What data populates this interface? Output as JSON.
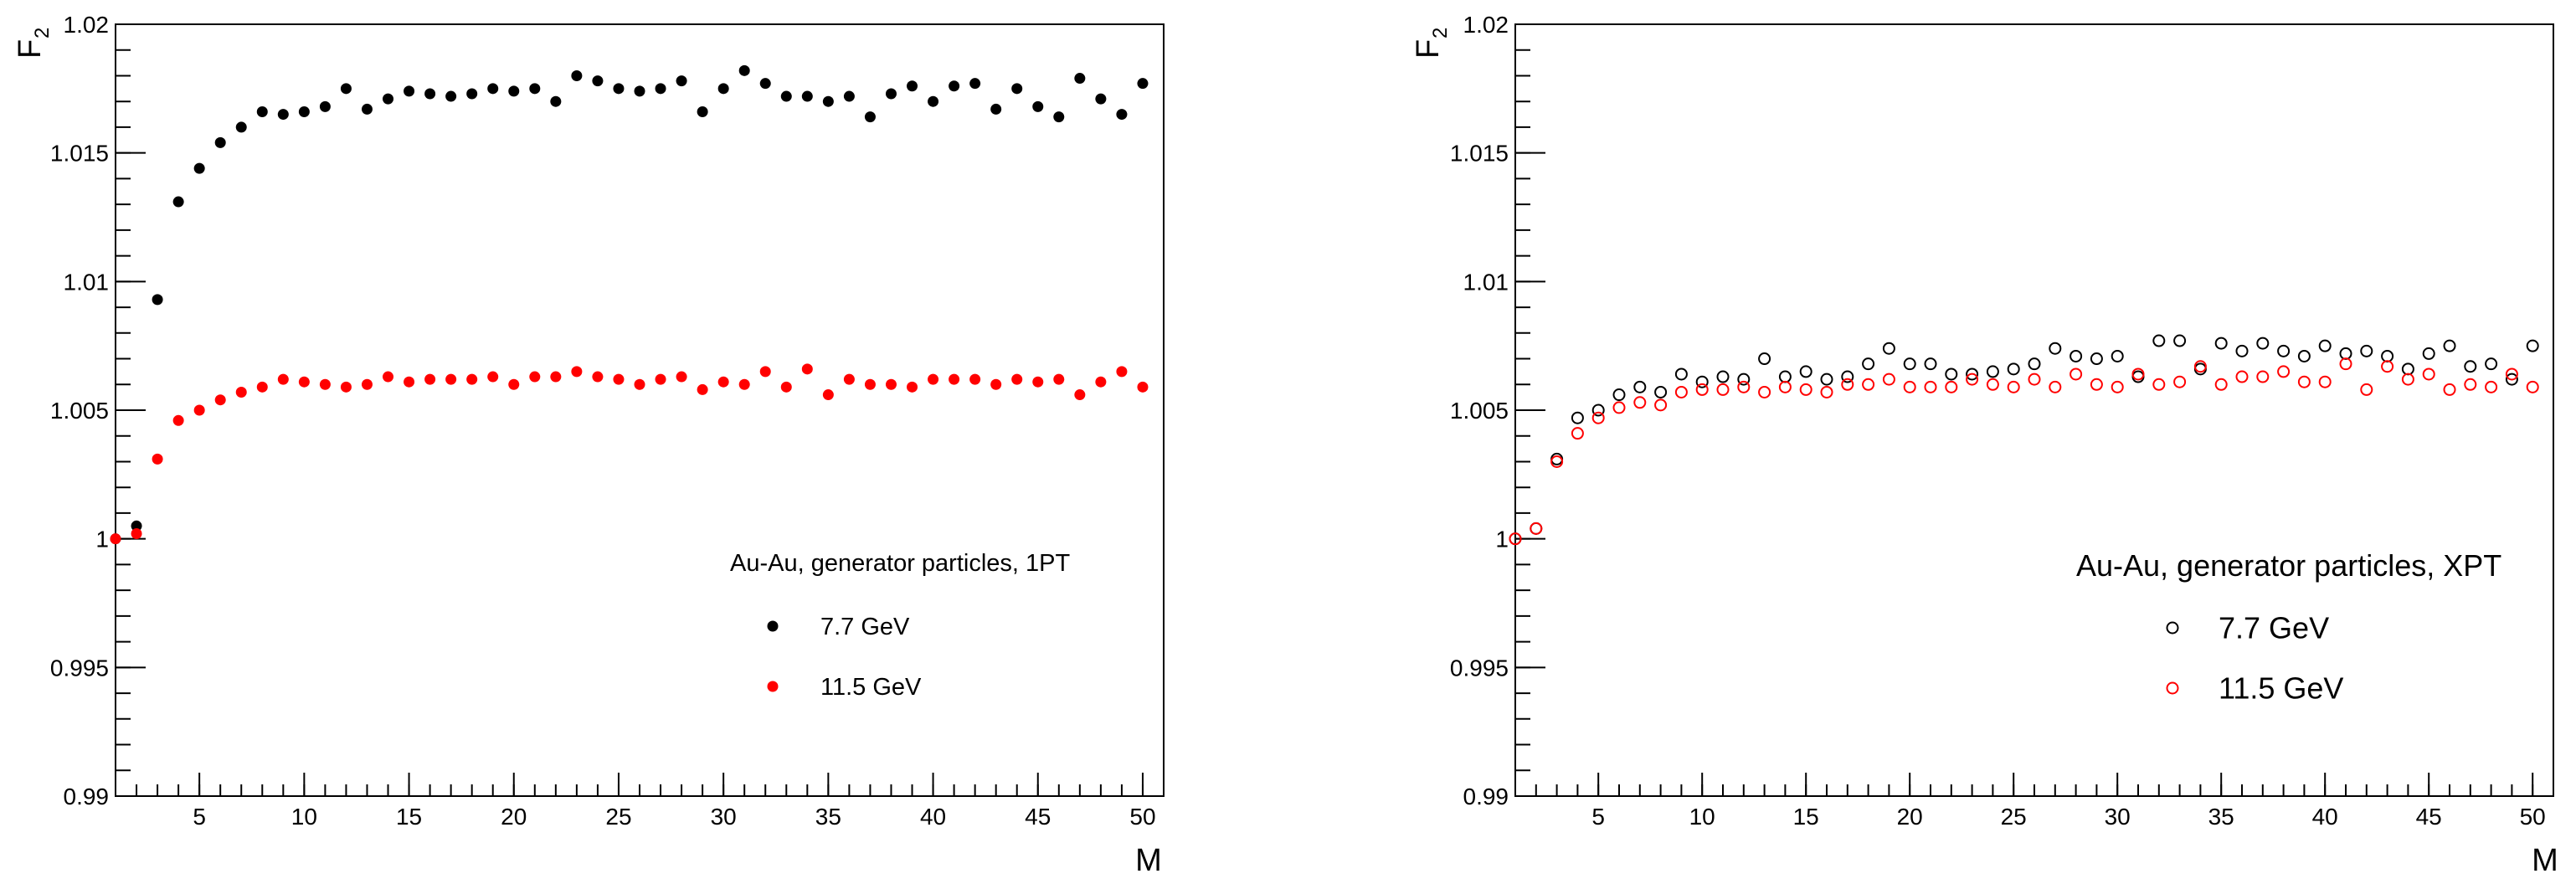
{
  "colors": {
    "series_a": "#000000",
    "series_b": "#ff0000",
    "frame": "#000000"
  },
  "chart_data": [
    {
      "type": "scatter",
      "marker": "filled-circle",
      "xlabel": "M",
      "ylabel": "F",
      "ylabel_sub": "2",
      "xlim": [
        1,
        51
      ],
      "ylim": [
        0.99,
        1.02
      ],
      "x_ticks": [
        5,
        10,
        15,
        20,
        25,
        30,
        35,
        40,
        45,
        50
      ],
      "x_tick_labels": [
        "5",
        "10",
        "15",
        "20",
        "25",
        "30",
        "35",
        "40",
        "45",
        "50"
      ],
      "y_ticks": [
        0.99,
        0.995,
        1.0,
        1.005,
        1.01,
        1.015,
        1.02
      ],
      "y_tick_labels": [
        "0.99",
        "0.995",
        "1",
        "1.005",
        "1.01",
        "1.015",
        "1.02"
      ],
      "legend_title": "Au-Au, generator particles, 1PT",
      "legend_position": "right-middle",
      "series": [
        {
          "name": "7.7 GeV",
          "x": [
            1,
            2,
            3,
            4,
            5,
            6,
            7,
            8,
            9,
            10,
            11,
            12,
            13,
            14,
            15,
            16,
            17,
            18,
            19,
            20,
            21,
            22,
            23,
            24,
            25,
            26,
            27,
            28,
            29,
            30,
            31,
            32,
            33,
            34,
            35,
            36,
            37,
            38,
            39,
            40,
            41,
            42,
            43,
            44,
            45,
            46,
            47,
            48,
            49,
            50
          ],
          "y": [
            1.0,
            1.0005,
            1.0093,
            1.0131,
            1.0144,
            1.0154,
            1.016,
            1.0166,
            1.0165,
            1.0166,
            1.0168,
            1.0175,
            1.0167,
            1.0171,
            1.0174,
            1.0173,
            1.0172,
            1.0173,
            1.0175,
            1.0174,
            1.0175,
            1.017,
            1.018,
            1.0178,
            1.0175,
            1.0174,
            1.0175,
            1.0178,
            1.0166,
            1.0175,
            1.0182,
            1.0177,
            1.0172,
            1.0172,
            1.017,
            1.0172,
            1.0164,
            1.0173,
            1.0176,
            1.017,
            1.0176,
            1.0177,
            1.0167,
            1.0175,
            1.0168,
            1.0164,
            1.0179,
            1.0171,
            1.0165,
            1.0177
          ]
        },
        {
          "name": "11.5 GeV",
          "x": [
            1,
            2,
            3,
            4,
            5,
            6,
            7,
            8,
            9,
            10,
            11,
            12,
            13,
            14,
            15,
            16,
            17,
            18,
            19,
            20,
            21,
            22,
            23,
            24,
            25,
            26,
            27,
            28,
            29,
            30,
            31,
            32,
            33,
            34,
            35,
            36,
            37,
            38,
            39,
            40,
            41,
            42,
            43,
            44,
            45,
            46,
            47,
            48,
            49,
            50
          ],
          "y": [
            1.0,
            1.0002,
            1.0031,
            1.0046,
            1.005,
            1.0054,
            1.0057,
            1.0059,
            1.0062,
            1.0061,
            1.006,
            1.0059,
            1.006,
            1.0063,
            1.0061,
            1.0062,
            1.0062,
            1.0062,
            1.0063,
            1.006,
            1.0063,
            1.0063,
            1.0065,
            1.0063,
            1.0062,
            1.006,
            1.0062,
            1.0063,
            1.0058,
            1.0061,
            1.006,
            1.0065,
            1.0059,
            1.0066,
            1.0056,
            1.0062,
            1.006,
            1.006,
            1.0059,
            1.0062,
            1.0062,
            1.0062,
            1.006,
            1.0062,
            1.0061,
            1.0062,
            1.0056,
            1.0061,
            1.0065,
            1.0059
          ]
        }
      ]
    },
    {
      "type": "scatter",
      "marker": "open-circle",
      "xlabel": "M",
      "ylabel": "F",
      "ylabel_sub": "2",
      "xlim": [
        1,
        51
      ],
      "ylim": [
        0.99,
        1.02
      ],
      "x_ticks": [
        5,
        10,
        15,
        20,
        25,
        30,
        35,
        40,
        45,
        50
      ],
      "x_tick_labels": [
        "5",
        "10",
        "15",
        "20",
        "25",
        "30",
        "35",
        "40",
        "45",
        "50"
      ],
      "y_ticks": [
        0.99,
        0.995,
        1.0,
        1.005,
        1.01,
        1.015,
        1.02
      ],
      "y_tick_labels": [
        "0.99",
        "0.995",
        "1",
        "1.005",
        "1.01",
        "1.015",
        "1.02"
      ],
      "legend_title": "Au-Au, generator particles, XPT",
      "legend_position": "bottom-right",
      "series": [
        {
          "name": "7.7 GeV",
          "x": [
            1,
            2,
            3,
            4,
            5,
            6,
            7,
            8,
            9,
            10,
            11,
            12,
            13,
            14,
            15,
            16,
            17,
            18,
            19,
            20,
            21,
            22,
            23,
            24,
            25,
            26,
            27,
            28,
            29,
            30,
            31,
            32,
            33,
            34,
            35,
            36,
            37,
            38,
            39,
            40,
            41,
            42,
            43,
            44,
            45,
            46,
            47,
            48,
            49,
            50
          ],
          "y": [
            1.0,
            1.0004,
            1.0031,
            1.0047,
            1.005,
            1.0056,
            1.0059,
            1.0057,
            1.0064,
            1.0061,
            1.0063,
            1.0062,
            1.007,
            1.0063,
            1.0065,
            1.0062,
            1.0063,
            1.0068,
            1.0074,
            1.0068,
            1.0068,
            1.0064,
            1.0064,
            1.0065,
            1.0066,
            1.0068,
            1.0074,
            1.0071,
            1.007,
            1.0071,
            1.0063,
            1.0077,
            1.0077,
            1.0066,
            1.0076,
            1.0073,
            1.0076,
            1.0073,
            1.0071,
            1.0075,
            1.0072,
            1.0073,
            1.0071,
            1.0066,
            1.0072,
            1.0075,
            1.0067,
            1.0068,
            1.0062,
            1.0075
          ]
        },
        {
          "name": "11.5 GeV",
          "x": [
            1,
            2,
            3,
            4,
            5,
            6,
            7,
            8,
            9,
            10,
            11,
            12,
            13,
            14,
            15,
            16,
            17,
            18,
            19,
            20,
            21,
            22,
            23,
            24,
            25,
            26,
            27,
            28,
            29,
            30,
            31,
            32,
            33,
            34,
            35,
            36,
            37,
            38,
            39,
            40,
            41,
            42,
            43,
            44,
            45,
            46,
            47,
            48,
            49,
            50
          ],
          "y": [
            1.0,
            1.0004,
            1.003,
            1.0041,
            1.0047,
            1.0051,
            1.0053,
            1.0052,
            1.0057,
            1.0058,
            1.0058,
            1.0059,
            1.0057,
            1.0059,
            1.0058,
            1.0057,
            1.006,
            1.006,
            1.0062,
            1.0059,
            1.0059,
            1.0059,
            1.0062,
            1.006,
            1.0059,
            1.0062,
            1.0059,
            1.0064,
            1.006,
            1.0059,
            1.0064,
            1.006,
            1.0061,
            1.0067,
            1.006,
            1.0063,
            1.0063,
            1.0065,
            1.0061,
            1.0061,
            1.0068,
            1.0058,
            1.0067,
            1.0062,
            1.0064,
            1.0058,
            1.006,
            1.0059,
            1.0064,
            1.0059
          ]
        }
      ]
    }
  ]
}
